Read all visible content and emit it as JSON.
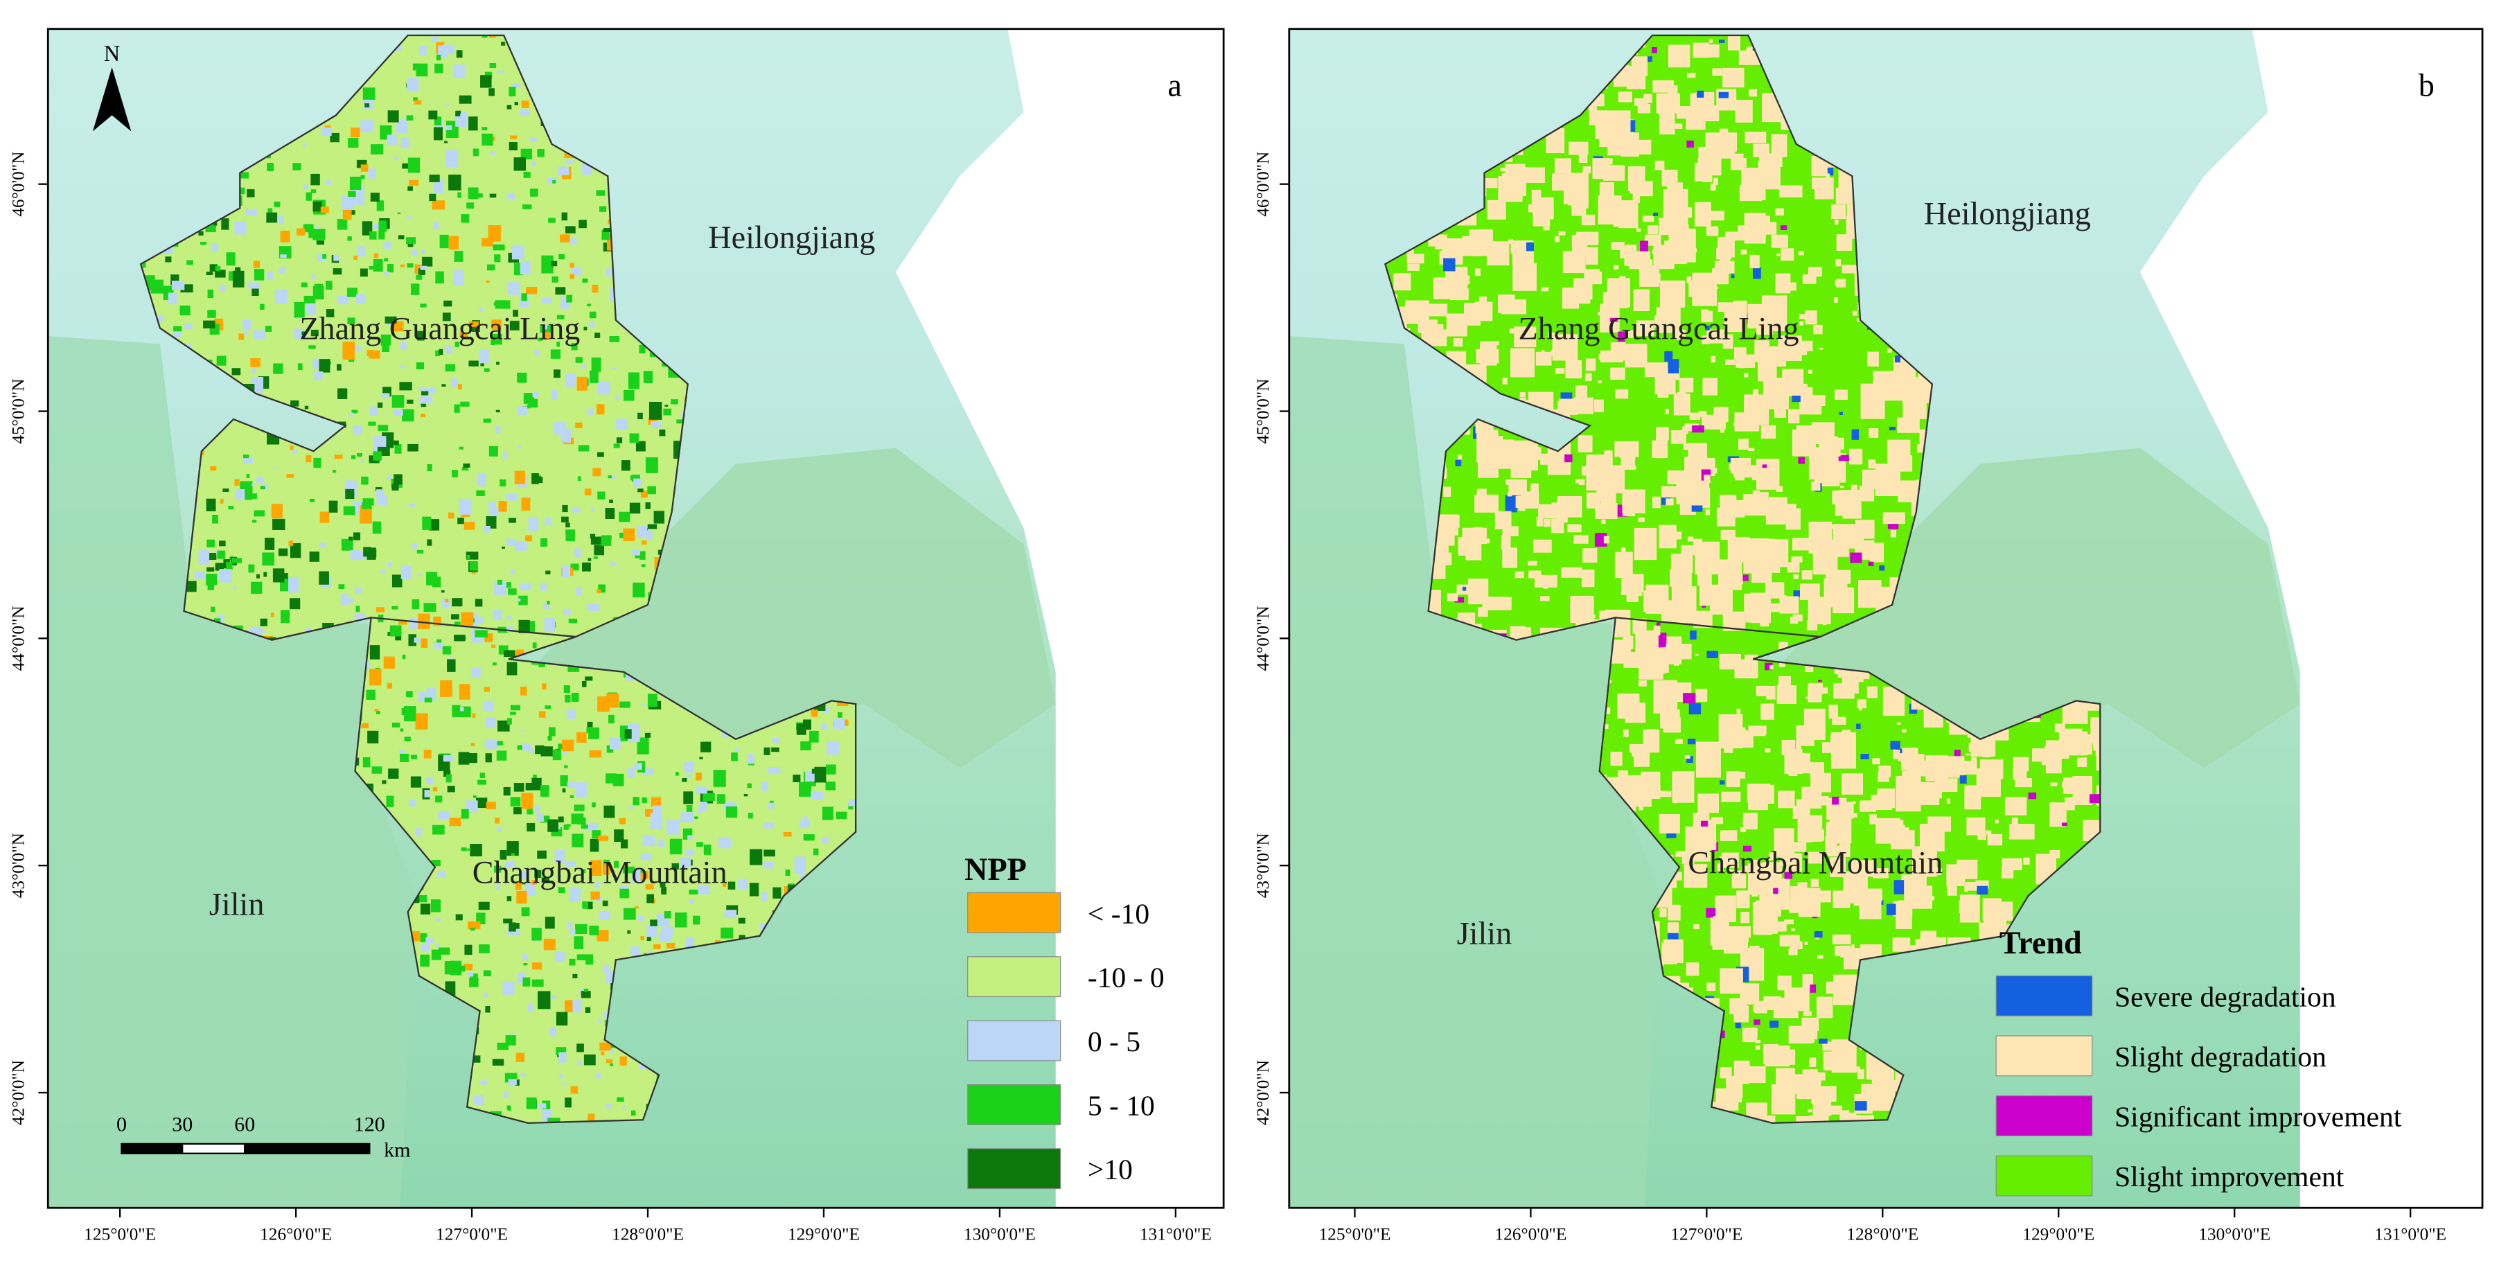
{
  "panels": [
    {
      "label": "a",
      "north": "N",
      "places": [
        "Heilongjiang",
        "Zhang Guangcai Ling",
        "Changbai Mountain",
        "Jilin"
      ],
      "lat_labels": [
        "46°0'0\"N",
        "45°0'0\"N",
        "44°0'0\"N",
        "43°0'0\"N",
        "42°0'0\"N"
      ],
      "lon_labels": [
        "125°0'0\"E",
        "126°0'0\"E",
        "127°0'0\"E",
        "128°0'0\"E",
        "129°0'0\"E",
        "130°0'0\"E",
        "131°0'0\"E"
      ],
      "scale_bar": {
        "labels": [
          "0",
          "30",
          "60",
          "120"
        ],
        "unit": "km"
      },
      "legend": {
        "title": "NPP",
        "items": [
          {
            "label": "< -10",
            "color": "#ffa500"
          },
          {
            "label": "-10 - 0",
            "color": "#c3f07e"
          },
          {
            "label": "0 - 5",
            "color": "#bcd6f7"
          },
          {
            "label": "5 - 10",
            "color": "#19d219"
          },
          {
            "label": ">10",
            "color": "#0a780a"
          }
        ]
      }
    },
    {
      "label": "b",
      "places": [
        "Heilongjiang",
        "Zhang Guangcai Ling",
        "Changbai Mountain",
        "Jilin"
      ],
      "lat_labels": [
        "46°0'0\"N",
        "45°0'0\"N",
        "44°0'0\"N",
        "43°0'0\"N",
        "42°0'0\"N"
      ],
      "lon_labels": [
        "125°0'0\"E",
        "126°0'0\"E",
        "127°0'0\"E",
        "128°0'0\"E",
        "129°0'0\"E",
        "130°0'0\"E",
        "131°0'0\"E"
      ],
      "legend": {
        "title": "Trend",
        "items": [
          {
            "label": "Severe degradation",
            "color": "#1560e0"
          },
          {
            "label": "Slight  degradation",
            "color": "#fde6b4"
          },
          {
            "label": "Significant improvement",
            "color": "#cc00cc"
          },
          {
            "label": "Slight improvement",
            "color": "#66ee00"
          }
        ]
      }
    }
  ]
}
